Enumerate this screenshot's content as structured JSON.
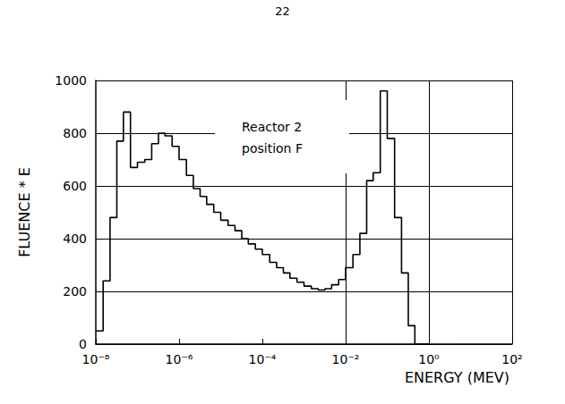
{
  "page_number": "22",
  "chart_data": {
    "type": "histogram",
    "annotations": [
      "Reactor 2",
      "position F"
    ],
    "xlabel": "ENERGY (MEV)",
    "ylabel": "FLUENCE * E",
    "bins": [
      1e-08,
      1.5e-08,
      2.2e-08,
      3.2e-08,
      4.6e-08,
      6.8e-08,
      1e-07,
      1.5e-07,
      2.2e-07,
      3.2e-07,
      4.6e-07,
      6.8e-07,
      1e-06,
      1.5e-06,
      2.2e-06,
      3.2e-06,
      4.6e-06,
      6.8e-06,
      1e-05,
      1.5e-05,
      2.2e-05,
      3.2e-05,
      4.6e-05,
      6.8e-05,
      0.0001,
      0.00015,
      0.00022,
      0.00032,
      0.00046,
      0.00068,
      0.001,
      0.0015,
      0.0022,
      0.0032,
      0.0046,
      0.0068,
      0.01,
      0.015,
      0.022,
      0.032,
      0.046,
      0.068,
      0.1,
      0.15,
      0.22,
      0.32,
      0.46,
      0.68,
      1
    ],
    "counts": [
      50,
      240,
      480,
      770,
      880,
      670,
      690,
      700,
      760,
      800,
      790,
      750,
      700,
      640,
      590,
      560,
      530,
      500,
      470,
      450,
      430,
      400,
      380,
      360,
      340,
      310,
      290,
      270,
      250,
      235,
      220,
      210,
      205,
      210,
      225,
      245,
      290,
      340,
      420,
      620,
      650,
      960,
      780,
      480,
      270,
      70,
      0,
      0
    ],
    "color": "#000000",
    "log": "x",
    "grid": true,
    "xlim": [
      1e-08,
      100
    ],
    "xticks": [
      {
        "value": 1e-08,
        "label": "10⁻⁸"
      },
      {
        "value": 1e-06,
        "label": "10⁻⁶"
      },
      {
        "value": 0.0001,
        "label": "10⁻⁴"
      },
      {
        "value": 0.01,
        "label": "10⁻²"
      },
      {
        "value": 1,
        "label": "10⁰"
      },
      {
        "value": 100,
        "label": "10²"
      }
    ],
    "ylim": [
      0,
      1000
    ],
    "yticks": [
      0,
      200,
      400,
      600,
      800,
      1000
    ]
  }
}
